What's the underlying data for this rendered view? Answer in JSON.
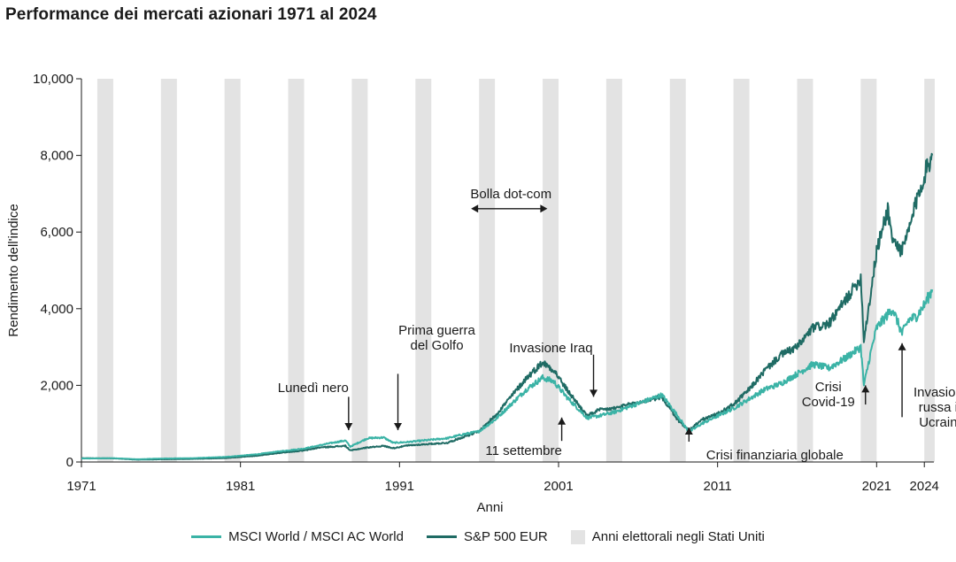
{
  "title": "Performance dei mercati azionari 1971 al 2024",
  "chart_data": {
    "type": "line",
    "title": "Performance dei mercati azionari 1971 al 2024",
    "xlabel": "Anni",
    "ylabel": "Rendimento dell'indice",
    "xlim": [
      1971,
      2024.6
    ],
    "ylim": [
      0,
      10000
    ],
    "x_ticks": [
      {
        "value": 1971,
        "label": "1971"
      },
      {
        "value": 1981,
        "label": "1981"
      },
      {
        "value": 1991,
        "label": "1991"
      },
      {
        "value": 2001,
        "label": "2001"
      },
      {
        "value": 2011,
        "label": "2011"
      },
      {
        "value": 2021,
        "label": "2021"
      },
      {
        "value": 2024,
        "label": "2024"
      }
    ],
    "y_ticks": [
      {
        "value": 0,
        "label": "0"
      },
      {
        "value": 2000,
        "label": "2,000"
      },
      {
        "value": 4000,
        "label": "4,000"
      },
      {
        "value": 6000,
        "label": "6,000"
      },
      {
        "value": 8000,
        "label": "8,000"
      },
      {
        "value": 10000,
        "label": "10,000"
      }
    ],
    "election_years": [
      1972,
      1976,
      1980,
      1984,
      1988,
      1992,
      1996,
      2000,
      2004,
      2008,
      2012,
      2016,
      2020,
      2024
    ],
    "series": [
      {
        "name": "MSCI World / MSCI AC World",
        "color": "#3bb3a6",
        "x": [
          1971,
          1973,
          1974.5,
          1976,
          1978,
          1980,
          1982,
          1983.5,
          1985,
          1986.5,
          1987.6,
          1987.9,
          1989,
          1990,
          1990.6,
          1991.5,
          1992.5,
          1994,
          1995,
          1996,
          1997,
          1998,
          1999,
          2000,
          2000.7,
          2001.5,
          2002.8,
          2003.5,
          2004.5,
          2005.5,
          2006.5,
          2007.5,
          2008.5,
          2009.2,
          2010,
          2011,
          2012,
          2013,
          2014,
          2015,
          2016,
          2017,
          2018,
          2019,
          2020.0,
          2020.2,
          2020.6,
          2021,
          2022,
          2022.6,
          2023,
          2023.5,
          2024,
          2024.5
        ],
        "values": [
          90,
          100,
          70,
          90,
          100,
          130,
          200,
          280,
          350,
          480,
          560,
          400,
          620,
          640,
          500,
          520,
          560,
          620,
          720,
          800,
          1100,
          1500,
          1900,
          2200,
          2100,
          1700,
          1150,
          1200,
          1300,
          1450,
          1600,
          1750,
          1200,
          780,
          1000,
          1200,
          1400,
          1650,
          1900,
          2050,
          2300,
          2550,
          2450,
          2700,
          3000,
          2000,
          2800,
          3500,
          4000,
          3350,
          3700,
          3800,
          4100,
          4500
        ]
      },
      {
        "name": "S&P 500 EUR",
        "color": "#1f6b64",
        "x": [
          1971,
          1973,
          1974.5,
          1976,
          1978,
          1980,
          1982,
          1983.5,
          1985,
          1986,
          1987.6,
          1987.9,
          1989,
          1990,
          1990.6,
          1991.5,
          1992.5,
          1994,
          1995,
          1996,
          1997,
          1998,
          1999,
          2000,
          2000.7,
          2001.5,
          2002.8,
          2003.5,
          2004.5,
          2005.5,
          2006.5,
          2007.5,
          2008.5,
          2009.2,
          2010,
          2011,
          2012,
          2013,
          2014,
          2015,
          2016,
          2017,
          2018,
          2019,
          2020.0,
          2020.2,
          2020.6,
          2021,
          2021.7,
          2022,
          2022.6,
          2023,
          2023.5,
          2024,
          2024.5
        ],
        "values": [
          100,
          95,
          60,
          70,
          80,
          100,
          160,
          240,
          300,
          380,
          420,
          300,
          380,
          420,
          360,
          430,
          460,
          500,
          650,
          800,
          1200,
          1700,
          2200,
          2600,
          2400,
          1900,
          1200,
          1350,
          1400,
          1500,
          1600,
          1700,
          1100,
          820,
          1100,
          1250,
          1500,
          1900,
          2400,
          2800,
          3000,
          3500,
          3600,
          4200,
          4800,
          3200,
          4300,
          5500,
          6600,
          5800,
          5500,
          6000,
          6800,
          7500,
          8000
        ]
      }
    ],
    "annotations": [
      {
        "text": [
          "Lunedì nero"
        ],
        "arrow_x": 1987.8,
        "arrow_dir": "down",
        "arrow_from": 1700,
        "arrow_to": 830
      },
      {
        "text": [
          "Prima guerra",
          "del Golfo"
        ],
        "arrow_x": 1990.9,
        "arrow_dir": "down",
        "arrow_from": 2300,
        "arrow_to": 830
      },
      {
        "text": [
          "Invasione Iraq"
        ],
        "arrow_x": 2003.2,
        "arrow_dir": "down",
        "arrow_from": 2800,
        "arrow_to": 1700
      },
      {
        "text": [
          "11 settembre"
        ],
        "arrow_x": 2001.2,
        "arrow_dir": "up",
        "arrow_from": 550,
        "arrow_to": 1160
      },
      {
        "text": [
          "Crisi finanziaria globale"
        ],
        "arrow_x": 2009.2,
        "arrow_dir": "up",
        "arrow_from": 530,
        "arrow_to": 900
      },
      {
        "text": [
          "Crisi",
          "Covid-19"
        ],
        "arrow_x": 2020.3,
        "arrow_dir": "up",
        "arrow_from": 1500,
        "arrow_to": 2000
      },
      {
        "text": [
          "Invasione",
          "russa in",
          "Ucraina"
        ],
        "arrow_x": 2022.6,
        "arrow_dir": "up",
        "arrow_from": 1170,
        "arrow_to": 3100
      }
    ],
    "range_annotation": {
      "text": "Bolla dot-com",
      "from": 1995.5,
      "to": 2000.3,
      "value": 6610
    },
    "legend": [
      {
        "label": "MSCI World / MSCI AC World",
        "kind": "line",
        "color": "#3bb3a6"
      },
      {
        "label": "S&P 500 EUR",
        "kind": "line",
        "color": "#1f6b64"
      },
      {
        "label": "Anni elettorali negli Stati Uniti",
        "kind": "box",
        "color": "#e3e3e3"
      }
    ]
  }
}
